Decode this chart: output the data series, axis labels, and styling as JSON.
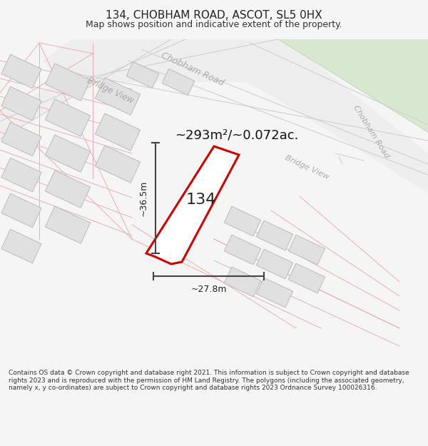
{
  "title": "134, CHOBHAM ROAD, ASCOT, SL5 0HX",
  "subtitle": "Map shows position and indicative extent of the property.",
  "footer": "Contains OS data © Crown copyright and database right 2021. This information is subject to Crown copyright and database rights 2023 and is reproduced with the permission of HM Land Registry. The polygons (including the associated geometry, namely x, y co-ordinates) are subject to Crown copyright and database rights 2023 Ordnance Survey 100026316.",
  "area_label": "~293m²/~0.072ac.",
  "property_number": "134",
  "dim_width": "~27.8m",
  "dim_height": "~36.5m",
  "bg_color": "#f5f5f5",
  "map_bg": "#ffffff",
  "green_area_color": "#d8e8d0",
  "building_fill": "#e0e0e0",
  "building_stroke": "#c0c0c0",
  "property_fill": "#ffffff",
  "property_stroke": "#cc0000",
  "plot_line_color": "#e8b0b0",
  "road_fill": "#eeeeee",
  "road_line": "#d0d0d0",
  "dim_line_color": "#444444",
  "road_label_color": "#aaaaaa",
  "title_fontsize": 11,
  "subtitle_fontsize": 9
}
